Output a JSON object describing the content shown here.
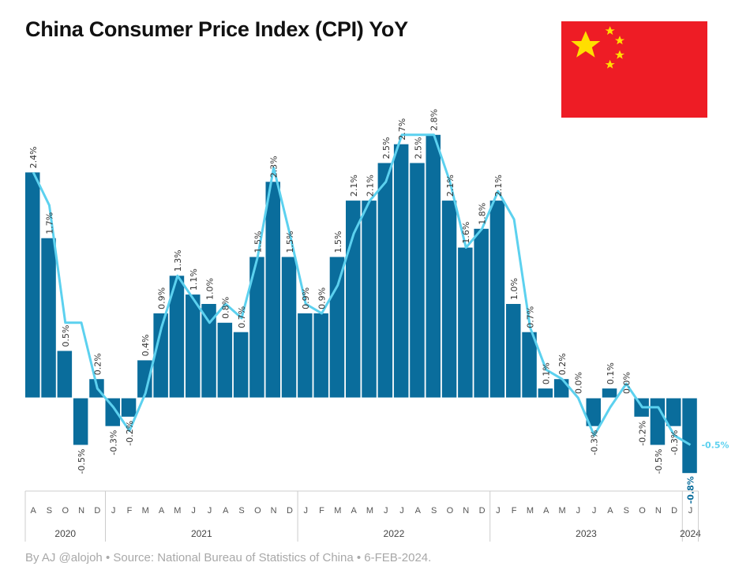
{
  "title": "China Consumer Price Index (CPI) YoY",
  "footer": "By AJ @alojoh • Source: National Bureau of Statistics of China • 6-FEB-2024.",
  "colors": {
    "bar": "#0a6d9c",
    "line": "#5cd1ef",
    "flag_red": "#ee1c25",
    "flag_star": "#ffde00",
    "axis": "#cccccc"
  },
  "chart_data": {
    "type": "bar",
    "title": "China Consumer Price Index (CPI) YoY",
    "xlabel": "",
    "ylabel": "",
    "ylim": [
      -0.8,
      2.8
    ],
    "categories": [
      "A",
      "S",
      "O",
      "N",
      "D",
      "J",
      "F",
      "M",
      "A",
      "M",
      "J",
      "J",
      "A",
      "S",
      "O",
      "N",
      "D",
      "J",
      "F",
      "M",
      "A",
      "M",
      "J",
      "J",
      "A",
      "S",
      "O",
      "N",
      "D",
      "J",
      "F",
      "M",
      "A",
      "M",
      "J",
      "J",
      "A",
      "S",
      "O",
      "N",
      "D",
      "J"
    ],
    "years": [
      {
        "label": "2020",
        "start": 0,
        "end": 4
      },
      {
        "label": "2021",
        "start": 5,
        "end": 16
      },
      {
        "label": "2022",
        "start": 17,
        "end": 28
      },
      {
        "label": "2023",
        "start": 29,
        "end": 40
      },
      {
        "label": "2024",
        "start": 41,
        "end": 41
      }
    ],
    "series": [
      {
        "name": "CPI YoY",
        "kind": "bar",
        "values": [
          2.4,
          1.7,
          0.5,
          -0.5,
          0.2,
          -0.3,
          -0.2,
          0.4,
          0.9,
          1.3,
          1.1,
          1.0,
          0.8,
          0.7,
          1.5,
          2.3,
          1.5,
          0.9,
          0.9,
          1.5,
          2.1,
          2.1,
          2.5,
          2.7,
          2.5,
          2.8,
          2.1,
          1.6,
          1.8,
          2.1,
          1.0,
          0.7,
          0.1,
          0.2,
          0.0,
          -0.3,
          0.1,
          0.0,
          -0.2,
          -0.5,
          -0.3,
          -0.8
        ],
        "labels": [
          "2.4%",
          "1.7%",
          "0.5%",
          "-0.5%",
          "0.2%",
          "-0.3%",
          "-0.2%",
          "0.4%",
          "0.9%",
          "1.3%",
          "1.1%",
          "1.0%",
          "0.8%",
          "0.7%",
          "1.5%",
          "2.3%",
          "1.5%",
          "0.9%",
          "0.9%",
          "1.5%",
          "2.1%",
          "2.1%",
          "2.5%",
          "2.7%",
          "2.5%",
          "2.8%",
          "2.1%",
          "1.6%",
          "1.8%",
          "2.1%",
          "1.0%",
          "0.7%",
          "0.1%",
          "0.2%",
          "0.0%",
          "-0.3%",
          "0.1%",
          "0.0%",
          "-0.2%",
          "-0.5%",
          "-0.3%",
          "-0.8%"
        ]
      },
      {
        "name": "CPI YoY (smoothed)",
        "kind": "line",
        "values": [
          2.4,
          2.05,
          0.8,
          0.8,
          0.1,
          -0.1,
          -0.35,
          0.05,
          0.75,
          1.3,
          1.05,
          0.8,
          1.0,
          0.85,
          1.5,
          2.45,
          1.75,
          1.0,
          0.9,
          1.2,
          1.75,
          2.1,
          2.3,
          2.8,
          2.8,
          2.8,
          2.3,
          1.6,
          1.8,
          2.2,
          1.9,
          0.75,
          0.3,
          0.2,
          0.0,
          -0.4,
          -0.1,
          0.15,
          -0.1,
          -0.1,
          -0.4,
          -0.5
        ],
        "end_label": "-0.5%"
      }
    ]
  }
}
